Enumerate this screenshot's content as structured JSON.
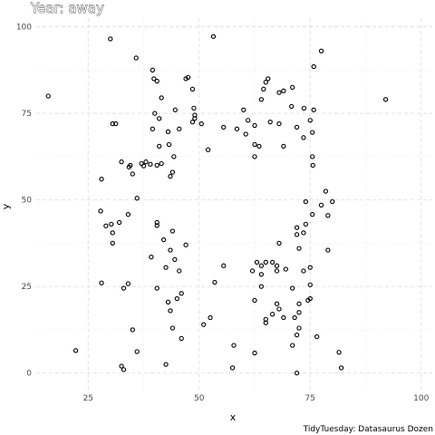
{
  "chart_data": {
    "type": "scatter",
    "title": "Year: away",
    "xlabel": "x",
    "ylabel": "y",
    "caption": "TidyTuesday: Datasaurus Dozen",
    "xlim": [
      13.3,
      102.5
    ],
    "ylim": [
      -4.8,
      102.5
    ],
    "x_ticks": [
      25,
      50,
      75,
      100
    ],
    "y_ticks": [
      0,
      25,
      50,
      75,
      100
    ],
    "grid": true,
    "points": [
      {
        "x": 16.0,
        "y": 80.0
      },
      {
        "x": 22.2,
        "y": 6.5
      },
      {
        "x": 30.0,
        "y": 96.5
      },
      {
        "x": 53.2,
        "y": 97.2
      },
      {
        "x": 35.8,
        "y": 91.0
      },
      {
        "x": 77.5,
        "y": 93.0
      },
      {
        "x": 75.8,
        "y": 88.5
      },
      {
        "x": 92.0,
        "y": 79.0
      },
      {
        "x": 39.5,
        "y": 87.5
      },
      {
        "x": 39.8,
        "y": 85.0
      },
      {
        "x": 40.5,
        "y": 84.3
      },
      {
        "x": 47.0,
        "y": 85.0
      },
      {
        "x": 47.5,
        "y": 85.4
      },
      {
        "x": 48.5,
        "y": 82.0
      },
      {
        "x": 30.5,
        "y": 72.0
      },
      {
        "x": 31.2,
        "y": 72.0
      },
      {
        "x": 41.5,
        "y": 79.5
      },
      {
        "x": 44.6,
        "y": 76.0
      },
      {
        "x": 40.0,
        "y": 75.0
      },
      {
        "x": 41.0,
        "y": 73.5
      },
      {
        "x": 48.8,
        "y": 76.5
      },
      {
        "x": 49.0,
        "y": 74.5
      },
      {
        "x": 49.0,
        "y": 73.5
      },
      {
        "x": 48.5,
        "y": 72.5
      },
      {
        "x": 50.5,
        "y": 72.0
      },
      {
        "x": 39.5,
        "y": 70.5
      },
      {
        "x": 43.0,
        "y": 69.7
      },
      {
        "x": 45.5,
        "y": 70.5
      },
      {
        "x": 60.0,
        "y": 76.0
      },
      {
        "x": 64.5,
        "y": 82.0
      },
      {
        "x": 65.0,
        "y": 84.0
      },
      {
        "x": 65.5,
        "y": 85.0
      },
      {
        "x": 68.0,
        "y": 81.0
      },
      {
        "x": 69.0,
        "y": 81.5
      },
      {
        "x": 71.0,
        "y": 82.5
      },
      {
        "x": 64.0,
        "y": 79.0
      },
      {
        "x": 70.8,
        "y": 77.0
      },
      {
        "x": 73.6,
        "y": 76.5
      },
      {
        "x": 75.8,
        "y": 76.0
      },
      {
        "x": 61.0,
        "y": 73.0
      },
      {
        "x": 62.5,
        "y": 71.5
      },
      {
        "x": 66.0,
        "y": 72.5
      },
      {
        "x": 68.0,
        "y": 72.0
      },
      {
        "x": 75.0,
        "y": 73.0
      },
      {
        "x": 55.5,
        "y": 71.0
      },
      {
        "x": 58.5,
        "y": 70.5
      },
      {
        "x": 60.5,
        "y": 69.0
      },
      {
        "x": 72.0,
        "y": 71.0
      },
      {
        "x": 73.5,
        "y": 68.0
      },
      {
        "x": 75.5,
        "y": 69.5
      },
      {
        "x": 62.5,
        "y": 66.0
      },
      {
        "x": 63.5,
        "y": 65.5
      },
      {
        "x": 69.0,
        "y": 65.5
      },
      {
        "x": 75.5,
        "y": 62.5
      },
      {
        "x": 62.5,
        "y": 62.5
      },
      {
        "x": 75.6,
        "y": 60.0
      },
      {
        "x": 52.0,
        "y": 64.5
      },
      {
        "x": 41.0,
        "y": 65.5
      },
      {
        "x": 43.2,
        "y": 66.0
      },
      {
        "x": 44.3,
        "y": 62.5
      },
      {
        "x": 32.5,
        "y": 61.0
      },
      {
        "x": 34.5,
        "y": 60.0
      },
      {
        "x": 34.2,
        "y": 59.5
      },
      {
        "x": 37.0,
        "y": 60.5
      },
      {
        "x": 38.0,
        "y": 61.0
      },
      {
        "x": 39.0,
        "y": 60.3
      },
      {
        "x": 40.5,
        "y": 60.0
      },
      {
        "x": 41.5,
        "y": 60.5
      },
      {
        "x": 37.5,
        "y": 59.8
      },
      {
        "x": 35.0,
        "y": 57.5
      },
      {
        "x": 28.0,
        "y": 56.0
      },
      {
        "x": 43.5,
        "y": 56.8
      },
      {
        "x": 44.0,
        "y": 58.0
      },
      {
        "x": 36.0,
        "y": 50.5
      },
      {
        "x": 78.5,
        "y": 52.5
      },
      {
        "x": 80.0,
        "y": 49.5
      },
      {
        "x": 77.5,
        "y": 48.5
      },
      {
        "x": 74.0,
        "y": 49.5
      },
      {
        "x": 27.8,
        "y": 46.8
      },
      {
        "x": 34.0,
        "y": 45.8
      },
      {
        "x": 32.0,
        "y": 43.5
      },
      {
        "x": 29.0,
        "y": 42.5
      },
      {
        "x": 30.2,
        "y": 43.0
      },
      {
        "x": 30.5,
        "y": 40.5
      },
      {
        "x": 30.5,
        "y": 37.5
      },
      {
        "x": 40.5,
        "y": 43.5
      },
      {
        "x": 40.5,
        "y": 42.6
      },
      {
        "x": 44.0,
        "y": 41.0
      },
      {
        "x": 42.0,
        "y": 38.5
      },
      {
        "x": 43.5,
        "y": 35.5
      },
      {
        "x": 47.0,
        "y": 37.0
      },
      {
        "x": 39.2,
        "y": 33.5
      },
      {
        "x": 44.5,
        "y": 32.8
      },
      {
        "x": 42.5,
        "y": 30.5
      },
      {
        "x": 45.5,
        "y": 29.5
      },
      {
        "x": 74.0,
        "y": 43.0
      },
      {
        "x": 75.5,
        "y": 45.8
      },
      {
        "x": 79.0,
        "y": 45.5
      },
      {
        "x": 72.0,
        "y": 42.0
      },
      {
        "x": 72.0,
        "y": 40.0
      },
      {
        "x": 73.5,
        "y": 40.5
      },
      {
        "x": 68.0,
        "y": 37.5
      },
      {
        "x": 72.5,
        "y": 36.0
      },
      {
        "x": 79.0,
        "y": 35.5
      },
      {
        "x": 75.0,
        "y": 30.5
      },
      {
        "x": 63.0,
        "y": 32.0
      },
      {
        "x": 64.0,
        "y": 31.0
      },
      {
        "x": 65.0,
        "y": 32.0
      },
      {
        "x": 66.5,
        "y": 32.0
      },
      {
        "x": 67.5,
        "y": 31.0
      },
      {
        "x": 67.5,
        "y": 29.5
      },
      {
        "x": 69.5,
        "y": 30.0
      },
      {
        "x": 73.5,
        "y": 29.5
      },
      {
        "x": 55.5,
        "y": 31.0
      },
      {
        "x": 62.0,
        "y": 29.5
      },
      {
        "x": 64.0,
        "y": 28.5
      },
      {
        "x": 64.0,
        "y": 25.0
      },
      {
        "x": 53.5,
        "y": 26.2
      },
      {
        "x": 28.0,
        "y": 26.0
      },
      {
        "x": 34.0,
        "y": 25.8
      },
      {
        "x": 33.0,
        "y": 24.5
      },
      {
        "x": 40.5,
        "y": 24.5
      },
      {
        "x": 46.0,
        "y": 23.0
      },
      {
        "x": 45.0,
        "y": 21.5
      },
      {
        "x": 43.0,
        "y": 20.5
      },
      {
        "x": 43.5,
        "y": 18.0
      },
      {
        "x": 44.0,
        "y": 13.0
      },
      {
        "x": 71.0,
        "y": 24.5
      },
      {
        "x": 75.0,
        "y": 25.5
      },
      {
        "x": 62.5,
        "y": 21.0
      },
      {
        "x": 67.5,
        "y": 20.0
      },
      {
        "x": 68.0,
        "y": 18.5
      },
      {
        "x": 66.5,
        "y": 17.0
      },
      {
        "x": 65.0,
        "y": 15.5
      },
      {
        "x": 65.0,
        "y": 14.5
      },
      {
        "x": 69.0,
        "y": 16.0
      },
      {
        "x": 72.5,
        "y": 20.0
      },
      {
        "x": 72.5,
        "y": 17.5
      },
      {
        "x": 74.5,
        "y": 21.0
      },
      {
        "x": 75.0,
        "y": 21.5
      },
      {
        "x": 71.5,
        "y": 16.0
      },
      {
        "x": 52.5,
        "y": 16.0
      },
      {
        "x": 51.0,
        "y": 14.0
      },
      {
        "x": 35.0,
        "y": 12.5
      },
      {
        "x": 46.0,
        "y": 10.0
      },
      {
        "x": 72.5,
        "y": 13.0
      },
      {
        "x": 72.0,
        "y": 11.0
      },
      {
        "x": 76.5,
        "y": 10.5
      },
      {
        "x": 71.0,
        "y": 8.0
      },
      {
        "x": 57.8,
        "y": 8.0
      },
      {
        "x": 81.5,
        "y": 6.0
      },
      {
        "x": 62.5,
        "y": 5.8
      },
      {
        "x": 36.0,
        "y": 6.2
      },
      {
        "x": 57.5,
        "y": 1.5
      },
      {
        "x": 82.0,
        "y": 1.5
      },
      {
        "x": 42.5,
        "y": 2.5
      },
      {
        "x": 32.5,
        "y": 2.0
      },
      {
        "x": 33.0,
        "y": 1.0
      },
      {
        "x": 72.0,
        "y": 0.0
      }
    ]
  }
}
